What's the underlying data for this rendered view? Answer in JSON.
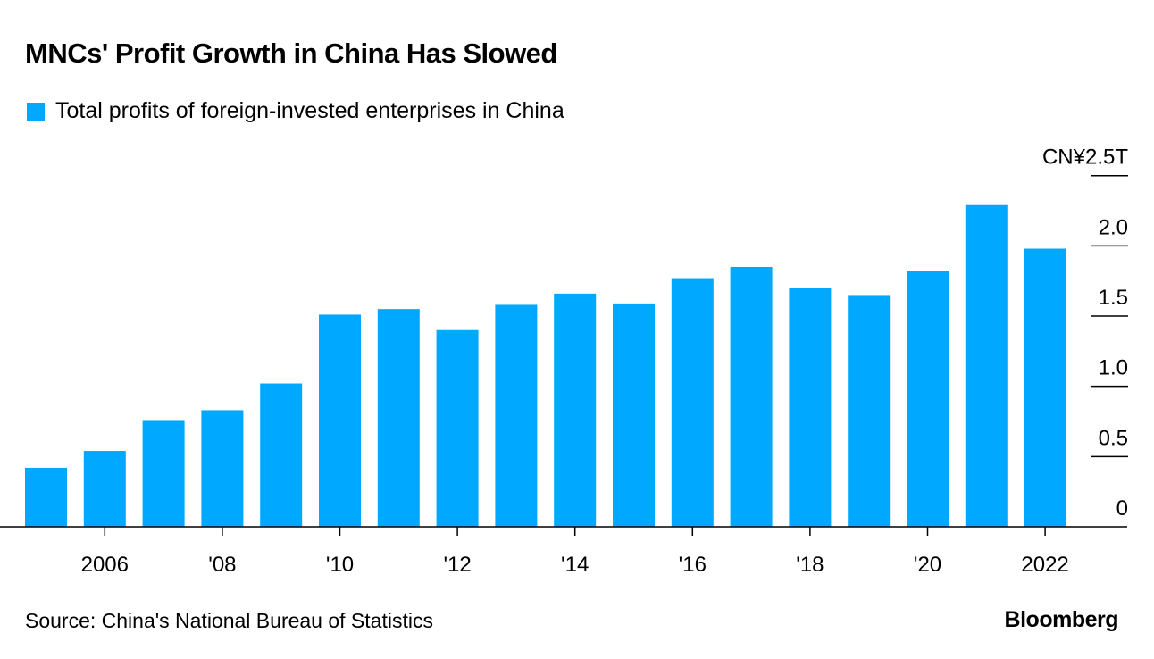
{
  "chart_data": {
    "type": "bar",
    "title": "MNCs' Profit Growth in China Has Slowed",
    "legend": [
      {
        "name": "Total profits of foreign-invested enterprises in China",
        "color": "#00a8ff"
      }
    ],
    "categories": [
      "2005",
      "2006",
      "2007",
      "2008",
      "2009",
      "2010",
      "2011",
      "2012",
      "2013",
      "2014",
      "2015",
      "2016",
      "2017",
      "2018",
      "2019",
      "2020",
      "2021",
      "2022"
    ],
    "series": [
      {
        "name": "Total profits of foreign-invested enterprises in China",
        "values": [
          0.42,
          0.54,
          0.76,
          0.83,
          1.02,
          1.51,
          1.55,
          1.4,
          1.58,
          1.66,
          1.59,
          1.77,
          1.85,
          1.7,
          1.65,
          1.82,
          2.29,
          1.98
        ]
      }
    ],
    "x_tick_labels": [
      {
        "category": "2006",
        "label": "2006"
      },
      {
        "category": "2008",
        "label": "'08"
      },
      {
        "category": "2010",
        "label": "'10"
      },
      {
        "category": "2012",
        "label": "'12"
      },
      {
        "category": "2014",
        "label": "'14"
      },
      {
        "category": "2016",
        "label": "'16"
      },
      {
        "category": "2018",
        "label": "'18"
      },
      {
        "category": "2020",
        "label": "'20"
      },
      {
        "category": "2022",
        "label": "2022"
      }
    ],
    "y_ticks": [
      {
        "value": 0,
        "label": "0"
      },
      {
        "value": 0.5,
        "label": "0.5"
      },
      {
        "value": 1.0,
        "label": "1.0"
      },
      {
        "value": 1.5,
        "label": "1.5"
      },
      {
        "value": 2.0,
        "label": "2.0"
      },
      {
        "value": 2.5,
        "label": "CN¥2.5T"
      }
    ],
    "ylim": [
      0,
      2.5
    ],
    "y_axis_side": "right",
    "grid": false,
    "legend_placement": "top-left",
    "source": "Source: China's National Bureau of Statistics",
    "brand": "Bloomberg"
  }
}
